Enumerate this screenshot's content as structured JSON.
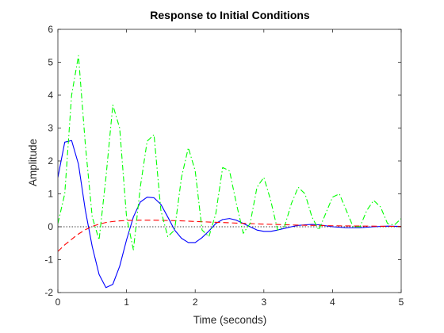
{
  "chart_data": {
    "type": "line",
    "title": "Response to Initial Conditions",
    "xlabel": "Time (seconds)",
    "ylabel": "Amplitude",
    "xlim": [
      0,
      5
    ],
    "ylim": [
      -2,
      6
    ],
    "xticks": [
      "0",
      "1",
      "2",
      "3",
      "4",
      "5"
    ],
    "yticks": [
      "-2",
      "-1",
      "0",
      "1",
      "2",
      "3",
      "4",
      "5",
      "6"
    ],
    "grid": false,
    "legend": "none",
    "zero_line": true,
    "series": [
      {
        "color": "#0000ff",
        "style": "solid",
        "x": [
          0,
          0.1,
          0.2,
          0.3,
          0.4,
          0.5,
          0.6,
          0.7,
          0.8,
          0.9,
          1.0,
          1.1,
          1.2,
          1.3,
          1.4,
          1.5,
          1.6,
          1.7,
          1.8,
          1.9,
          2.0,
          2.1,
          2.2,
          2.3,
          2.4,
          2.5,
          2.6,
          2.7,
          2.8,
          2.9,
          3.0,
          3.1,
          3.2,
          3.3,
          3.4,
          3.5,
          3.6,
          3.7,
          3.8,
          3.9,
          4.0,
          4.2,
          4.4,
          4.6,
          4.8,
          5.0
        ],
        "y": [
          1.5,
          2.57,
          2.62,
          1.9,
          0.5,
          -0.6,
          -1.45,
          -1.85,
          -1.75,
          -1.2,
          -0.4,
          0.3,
          0.75,
          0.9,
          0.88,
          0.68,
          0.3,
          -0.1,
          -0.35,
          -0.48,
          -0.48,
          -0.33,
          -0.13,
          0.1,
          0.22,
          0.25,
          0.2,
          0.1,
          0.0,
          -0.1,
          -0.14,
          -0.14,
          -0.1,
          -0.05,
          0.0,
          0.04,
          0.06,
          0.07,
          0.06,
          0.03,
          0.0,
          -0.03,
          -0.03,
          0.0,
          0.02,
          0.01
        ]
      },
      {
        "color": "#ff0000",
        "style": "dashed",
        "x": [
          0,
          0.1,
          0.2,
          0.3,
          0.4,
          0.5,
          0.6,
          0.7,
          0.8,
          0.9,
          1.0,
          1.2,
          1.4,
          1.6,
          1.8,
          2.0,
          2.5,
          3.0,
          3.5,
          4.0,
          4.5,
          5.0
        ],
        "y": [
          -0.75,
          -0.55,
          -0.38,
          -0.22,
          -0.09,
          0.01,
          0.08,
          0.13,
          0.16,
          0.18,
          0.19,
          0.2,
          0.2,
          0.19,
          0.18,
          0.16,
          0.12,
          0.08,
          0.05,
          0.03,
          0.02,
          0.01
        ]
      },
      {
        "color": "#00ff00",
        "style": "dashdot",
        "x": [
          0,
          0.1,
          0.2,
          0.3,
          0.4,
          0.5,
          0.6,
          0.7,
          0.8,
          0.9,
          1.0,
          1.1,
          1.2,
          1.3,
          1.4,
          1.5,
          1.6,
          1.7,
          1.8,
          1.9,
          2.0,
          2.1,
          2.2,
          2.3,
          2.4,
          2.5,
          2.6,
          2.7,
          2.8,
          2.9,
          3.0,
          3.1,
          3.2,
          3.3,
          3.4,
          3.5,
          3.6,
          3.7,
          3.8,
          3.9,
          4.0,
          4.1,
          4.2,
          4.3,
          4.4,
          4.5,
          4.6,
          4.7,
          4.8,
          4.9,
          5.0
        ],
        "y": [
          0.1,
          1.0,
          4.0,
          5.2,
          2.5,
          0.3,
          -0.4,
          1.5,
          3.7,
          3.0,
          0.3,
          -0.7,
          1.2,
          2.6,
          2.8,
          0.5,
          -0.3,
          -0.1,
          1.5,
          2.4,
          1.7,
          -0.1,
          -0.3,
          0.4,
          1.8,
          1.7,
          0.7,
          -0.2,
          0.1,
          1.2,
          1.5,
          0.8,
          -0.1,
          0.0,
          0.7,
          1.2,
          1.0,
          0.3,
          -0.1,
          0.4,
          0.9,
          1.0,
          0.5,
          0.0,
          0.0,
          0.5,
          0.8,
          0.6,
          0.1,
          0.05,
          0.25
        ]
      }
    ]
  }
}
